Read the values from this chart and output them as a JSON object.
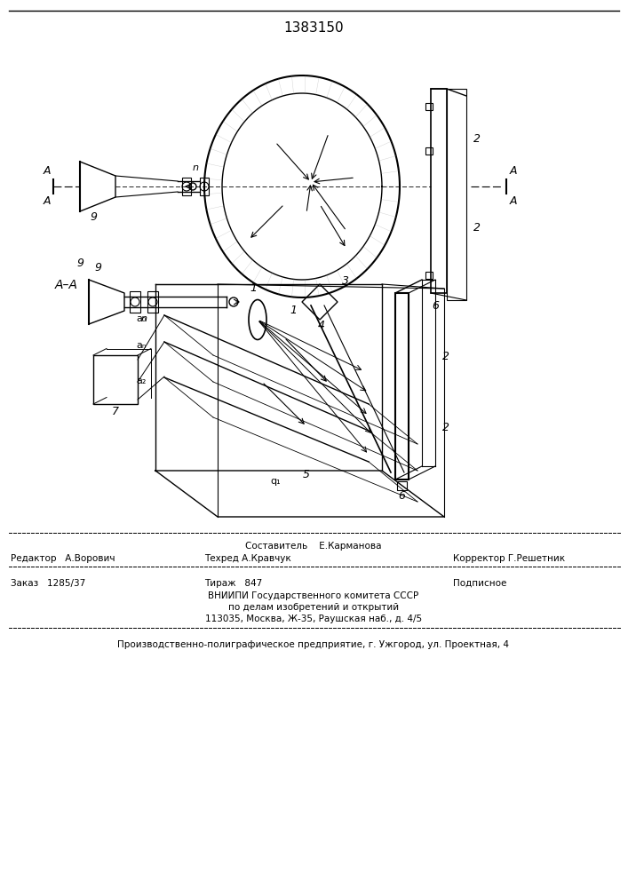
{
  "patent_number": "1383150",
  "bg_color": "#ffffff",
  "line_color": "#000000",
  "footer": {
    "sestavitel": "Составитель    Е.Карманова",
    "redaktor": "Редактор   А.Ворович",
    "tehred": "Техред А.Кравчук",
    "korrektor": "Корректор Г.Решетник",
    "zakaz": "Заказ   1285/37",
    "tiraж": "Тираж   847",
    "podpisnoe": "Подписное",
    "vniiipi1": "ВНИИПИ Государственного комитета СССР",
    "vniiipi2": "по делам изобретений и открытий",
    "vniiipi3": "113035, Москва, Ж-35, Раушская наб., д. 4/5",
    "proizv": "Производственно-полиграфическое предприятие, г. Ужгород, ул. Проектная, 4"
  }
}
